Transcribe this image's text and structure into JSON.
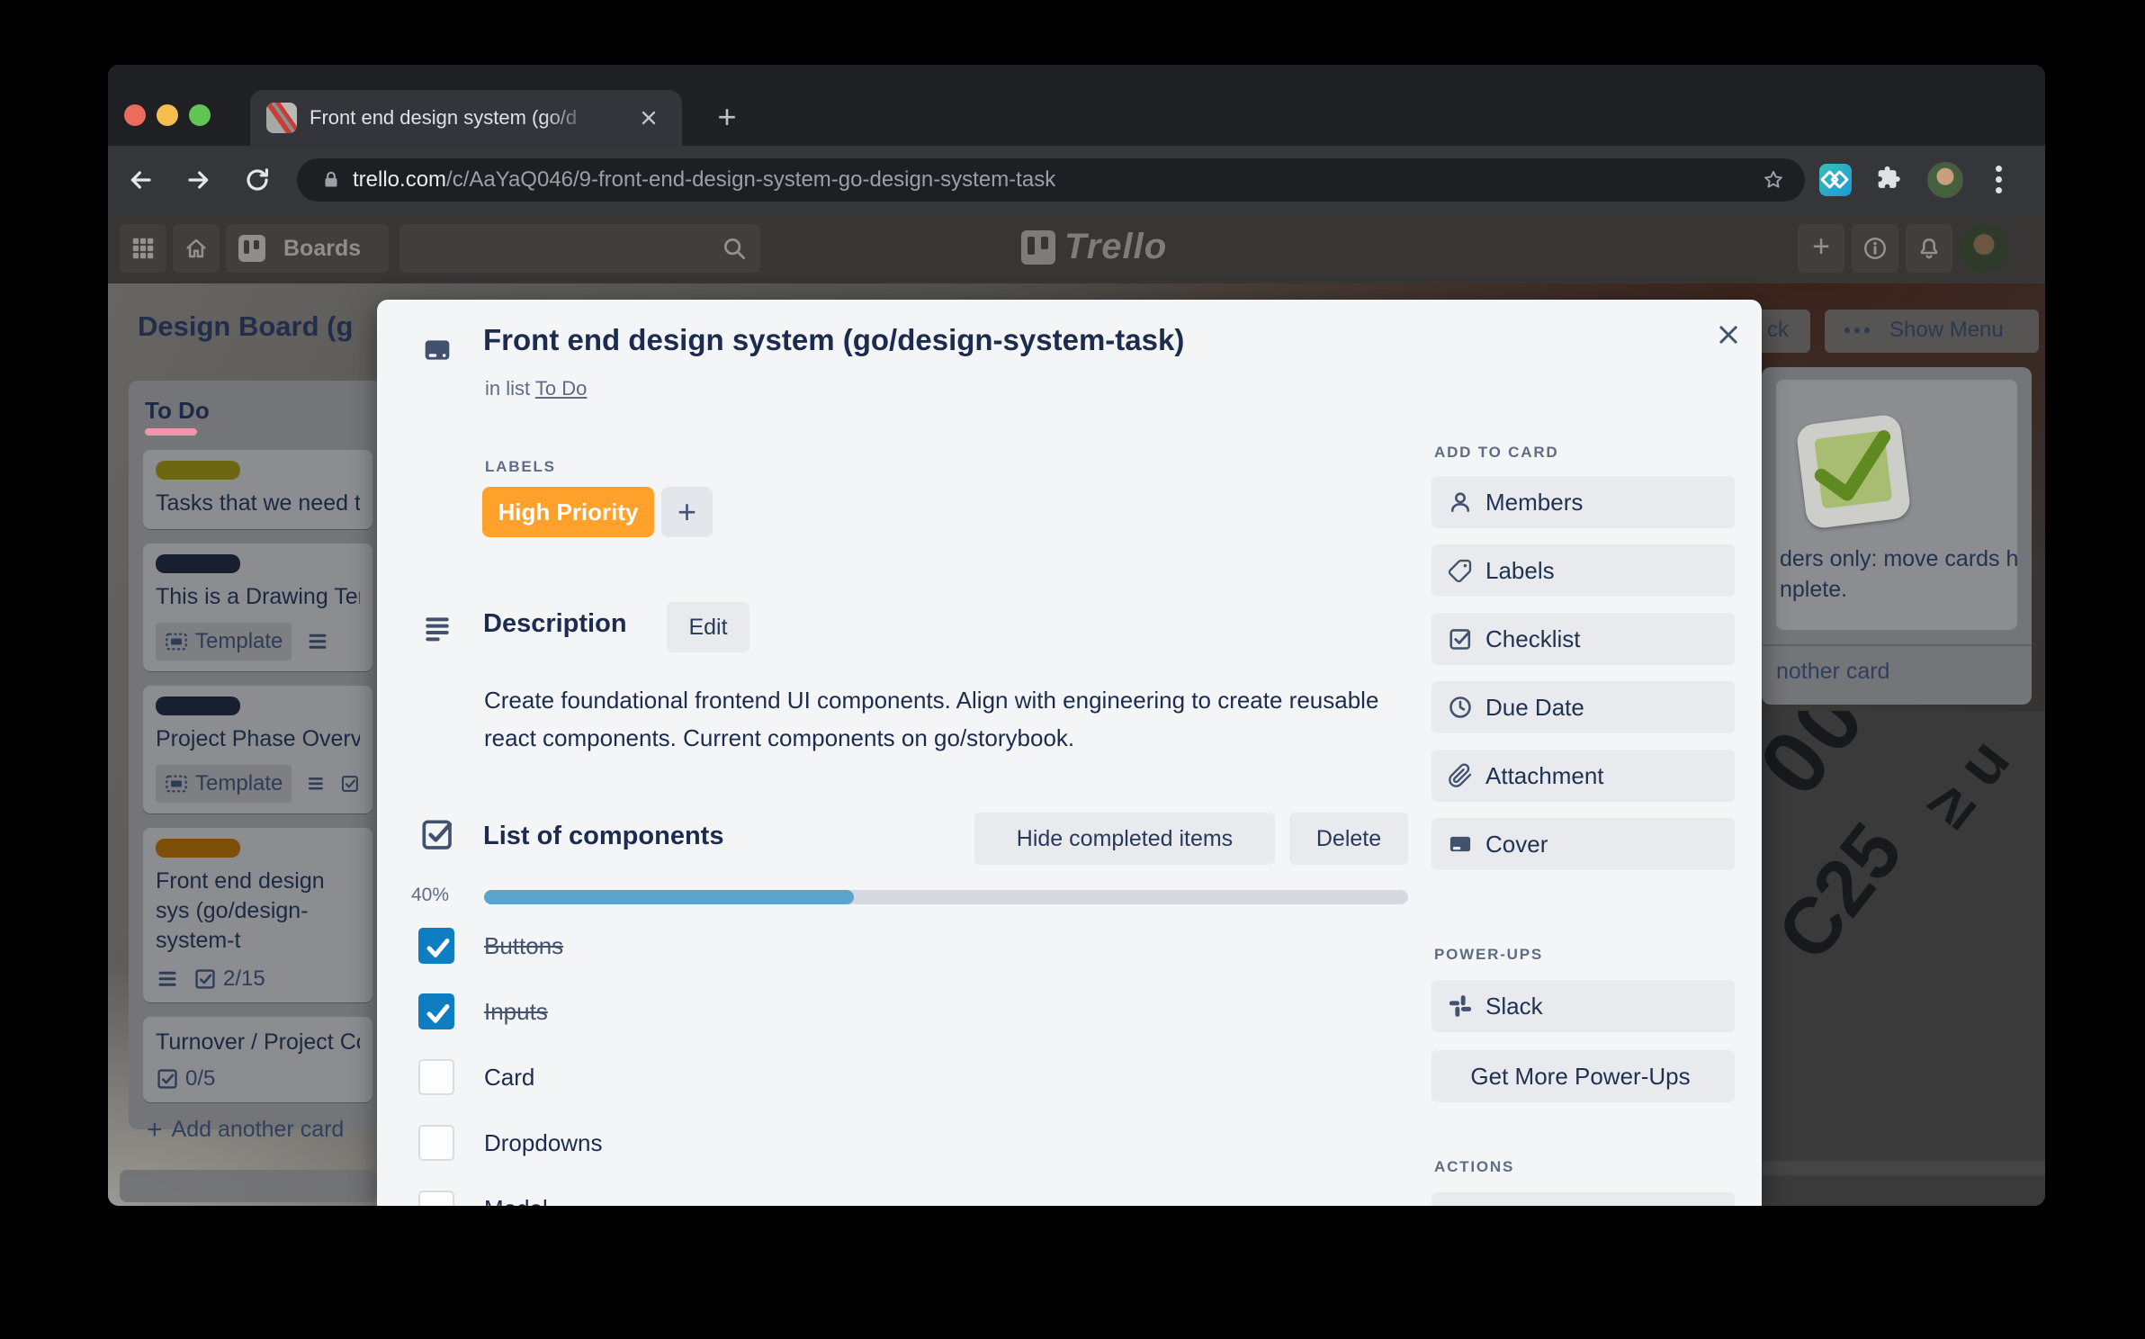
{
  "colors": {
    "label_orange": "#FFA12B",
    "progress_blue": "#5BA4CF",
    "checked_blue": "#0E7DC2",
    "todo_underline_pink": "#EF96AC",
    "modal_bg": "#F4F5F7",
    "text_navy": "#1D2B4E"
  },
  "browser": {
    "tab_title": "Front end design system (go/d",
    "url": {
      "domain": "trello.com",
      "path": "/c/AaYaQ046/9-front-end-design-system-go-design-system-task"
    }
  },
  "topbar": {
    "boards_label": "Boards",
    "logo_text": "Trello"
  },
  "board": {
    "title": "Design Board (g",
    "header_fragment_button": "ck",
    "show_menu_label": "Show Menu",
    "todo": {
      "header": "To Do",
      "add_card_label": "Add another card",
      "cards": [
        {
          "title": "Tasks that we need t",
          "label_color": "#6d6712"
        },
        {
          "title": "This is a Drawing Ter",
          "label_color": "#181f31",
          "badge": "Template"
        },
        {
          "title": "Project Phase Overv",
          "label_color": "#181f31",
          "badge": "Template"
        },
        {
          "title": "Front end design sys (go/design-system-t",
          "label_color": "#7c4e08",
          "checklist_badge": "2/15"
        },
        {
          "title": "Turnover / Project Co",
          "checklist_badge": "0/5"
        }
      ]
    },
    "right_list": {
      "card_line1": "ders only: move cards h",
      "card_line2": "nplete.",
      "add_card_fragment": "nother card"
    }
  },
  "modal": {
    "title": "Front end design system (go/design-system-task)",
    "in_list_prefix": "in list",
    "in_list_link": "To Do",
    "labels_header": "LABELS",
    "label_chip": "High Priority",
    "description_header": "Description",
    "edit_button": "Edit",
    "description_text": "Create foundational frontend UI components. Align with engineering to create reusable react components. Current components on go/storybook.",
    "checklist": {
      "title": "List of components",
      "hide_button": "Hide completed items",
      "delete_button": "Delete",
      "percent": "40%",
      "percent_value": 40,
      "items": [
        {
          "label": "Buttons",
          "checked": true
        },
        {
          "label": "Inputs",
          "checked": true
        },
        {
          "label": "Card",
          "checked": false
        },
        {
          "label": "Dropdowns",
          "checked": false
        },
        {
          "label": "Modal",
          "checked": false
        }
      ]
    },
    "sidebar": {
      "add_to_card_header": "ADD TO CARD",
      "buttons": [
        {
          "label": "Members",
          "icon": "member-icon"
        },
        {
          "label": "Labels",
          "icon": "label-icon"
        },
        {
          "label": "Checklist",
          "icon": "checklist-icon"
        },
        {
          "label": "Due Date",
          "icon": "clock-icon"
        },
        {
          "label": "Attachment",
          "icon": "paperclip-icon"
        },
        {
          "label": "Cover",
          "icon": "cover-icon"
        }
      ],
      "powerups_header": "POWER-UPS",
      "slack_button": "Slack",
      "get_more_button": "Get More Power-Ups",
      "actions_header": "ACTIONS"
    }
  }
}
